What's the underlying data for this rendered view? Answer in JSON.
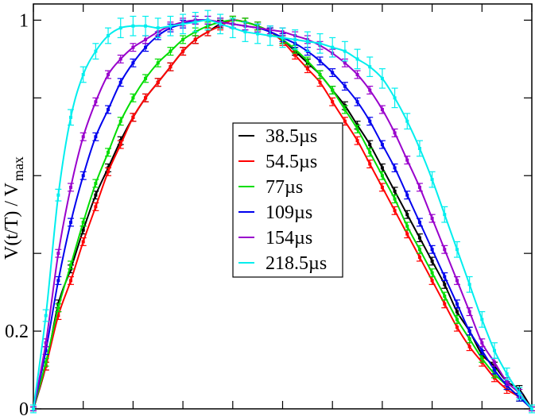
{
  "chart_data": {
    "type": "line",
    "title": "",
    "xlabel": "",
    "ylabel": "V(t/T) / V",
    "ylabel_sub": "max",
    "xlim": [
      0,
      1
    ],
    "ylim": [
      0,
      1
    ],
    "x_ticks": [
      0,
      0.1,
      0.2,
      0.3,
      0.4,
      0.5,
      0.6,
      0.7,
      0.8,
      0.9,
      1.0
    ],
    "y_ticks": [
      0,
      0.2,
      0.4,
      0.6,
      0.8,
      1.0
    ],
    "y_tick_labels": [
      "0",
      "0.2",
      "",
      "",
      "",
      "1"
    ],
    "grid": false,
    "legend_position": "center",
    "error_bars": true,
    "series": [
      {
        "name": "38.5µs",
        "color": "#000000",
        "x": [
          0.0,
          0.025,
          0.05,
          0.075,
          0.1,
          0.125,
          0.15,
          0.175,
          0.2,
          0.225,
          0.25,
          0.275,
          0.3,
          0.325,
          0.35,
          0.375,
          0.4,
          0.425,
          0.45,
          0.475,
          0.5,
          0.525,
          0.55,
          0.575,
          0.6,
          0.625,
          0.65,
          0.675,
          0.7,
          0.725,
          0.75,
          0.775,
          0.8,
          0.825,
          0.85,
          0.875,
          0.9,
          0.925,
          0.95,
          0.975,
          1.0
        ],
        "y": [
          0.0,
          0.11,
          0.27,
          0.36,
          0.46,
          0.55,
          0.62,
          0.69,
          0.75,
          0.8,
          0.84,
          0.88,
          0.92,
          0.95,
          0.97,
          0.99,
          1.0,
          0.995,
          0.985,
          0.97,
          0.95,
          0.92,
          0.89,
          0.86,
          0.82,
          0.78,
          0.73,
          0.68,
          0.62,
          0.56,
          0.5,
          0.44,
          0.38,
          0.32,
          0.25,
          0.2,
          0.14,
          0.11,
          0.07,
          0.05,
          0.0
        ],
        "err": [
          0.005,
          0.01,
          0.01,
          0.01,
          0.01,
          0.01,
          0.01,
          0.01,
          0.01,
          0.01,
          0.01,
          0.01,
          0.01,
          0.01,
          0.01,
          0.01,
          0.01,
          0.01,
          0.01,
          0.01,
          0.01,
          0.01,
          0.01,
          0.01,
          0.01,
          0.01,
          0.01,
          0.01,
          0.01,
          0.01,
          0.01,
          0.01,
          0.01,
          0.01,
          0.01,
          0.01,
          0.01,
          0.01,
          0.01,
          0.01,
          0.005
        ]
      },
      {
        "name": "54.5µs",
        "color": "#ff0000",
        "x": [
          0.0,
          0.025,
          0.05,
          0.075,
          0.1,
          0.125,
          0.15,
          0.175,
          0.2,
          0.225,
          0.25,
          0.275,
          0.3,
          0.325,
          0.35,
          0.375,
          0.4,
          0.425,
          0.45,
          0.475,
          0.5,
          0.525,
          0.55,
          0.575,
          0.6,
          0.625,
          0.65,
          0.675,
          0.7,
          0.725,
          0.75,
          0.775,
          0.8,
          0.825,
          0.85,
          0.875,
          0.9,
          0.925,
          0.95,
          0.975,
          1.0
        ],
        "y": [
          0.0,
          0.11,
          0.24,
          0.33,
          0.43,
          0.52,
          0.61,
          0.68,
          0.75,
          0.8,
          0.84,
          0.88,
          0.92,
          0.95,
          0.97,
          0.985,
          1.0,
          0.995,
          0.985,
          0.97,
          0.945,
          0.91,
          0.875,
          0.84,
          0.79,
          0.74,
          0.69,
          0.63,
          0.57,
          0.51,
          0.45,
          0.39,
          0.33,
          0.27,
          0.21,
          0.16,
          0.12,
          0.08,
          0.05,
          0.03,
          0.0
        ],
        "err": [
          0.005,
          0.01,
          0.01,
          0.01,
          0.01,
          0.01,
          0.01,
          0.01,
          0.01,
          0.01,
          0.01,
          0.01,
          0.01,
          0.01,
          0.01,
          0.01,
          0.01,
          0.01,
          0.01,
          0.01,
          0.01,
          0.01,
          0.01,
          0.01,
          0.01,
          0.01,
          0.01,
          0.01,
          0.01,
          0.01,
          0.01,
          0.01,
          0.01,
          0.01,
          0.01,
          0.01,
          0.01,
          0.01,
          0.01,
          0.01,
          0.005
        ]
      },
      {
        "name": "77µs",
        "color": "#00dd00",
        "x": [
          0.0,
          0.025,
          0.05,
          0.075,
          0.1,
          0.125,
          0.15,
          0.175,
          0.2,
          0.225,
          0.25,
          0.275,
          0.3,
          0.325,
          0.35,
          0.375,
          0.4,
          0.425,
          0.45,
          0.475,
          0.5,
          0.525,
          0.55,
          0.575,
          0.6,
          0.625,
          0.65,
          0.675,
          0.7,
          0.725,
          0.75,
          0.775,
          0.8,
          0.825,
          0.85,
          0.875,
          0.9,
          0.925,
          0.95,
          0.975,
          1.0
        ],
        "y": [
          0.0,
          0.12,
          0.26,
          0.37,
          0.48,
          0.58,
          0.66,
          0.74,
          0.8,
          0.85,
          0.89,
          0.92,
          0.95,
          0.97,
          0.985,
          0.995,
          1.0,
          0.995,
          0.985,
          0.97,
          0.95,
          0.925,
          0.895,
          0.86,
          0.82,
          0.77,
          0.72,
          0.66,
          0.6,
          0.54,
          0.47,
          0.41,
          0.35,
          0.29,
          0.23,
          0.18,
          0.13,
          0.09,
          0.06,
          0.03,
          0.0
        ],
        "err": [
          0.005,
          0.01,
          0.01,
          0.01,
          0.01,
          0.01,
          0.01,
          0.01,
          0.01,
          0.01,
          0.01,
          0.01,
          0.01,
          0.01,
          0.01,
          0.01,
          0.01,
          0.01,
          0.01,
          0.01,
          0.01,
          0.01,
          0.01,
          0.01,
          0.01,
          0.01,
          0.01,
          0.01,
          0.01,
          0.01,
          0.01,
          0.01,
          0.01,
          0.01,
          0.01,
          0.01,
          0.01,
          0.01,
          0.01,
          0.01,
          0.005
        ]
      },
      {
        "name": "109µs",
        "color": "#0000ee",
        "x": [
          0.0,
          0.025,
          0.05,
          0.075,
          0.1,
          0.125,
          0.15,
          0.175,
          0.2,
          0.225,
          0.25,
          0.275,
          0.3,
          0.325,
          0.35,
          0.375,
          0.4,
          0.425,
          0.45,
          0.475,
          0.5,
          0.525,
          0.55,
          0.575,
          0.6,
          0.625,
          0.65,
          0.675,
          0.7,
          0.725,
          0.75,
          0.775,
          0.8,
          0.825,
          0.85,
          0.875,
          0.9,
          0.925,
          0.95,
          0.975,
          1.0
        ],
        "y": [
          0.0,
          0.15,
          0.33,
          0.48,
          0.6,
          0.7,
          0.77,
          0.84,
          0.89,
          0.93,
          0.96,
          0.98,
          0.99,
          1.0,
          1.0,
          0.995,
          0.99,
          0.985,
          0.98,
          0.97,
          0.955,
          0.94,
          0.92,
          0.895,
          0.865,
          0.83,
          0.79,
          0.74,
          0.68,
          0.62,
          0.55,
          0.48,
          0.41,
          0.34,
          0.27,
          0.2,
          0.15,
          0.1,
          0.06,
          0.03,
          0.0
        ],
        "err": [
          0.005,
          0.01,
          0.01,
          0.01,
          0.01,
          0.01,
          0.01,
          0.01,
          0.01,
          0.01,
          0.01,
          0.01,
          0.01,
          0.01,
          0.01,
          0.01,
          0.01,
          0.01,
          0.01,
          0.01,
          0.01,
          0.01,
          0.01,
          0.01,
          0.01,
          0.01,
          0.01,
          0.01,
          0.01,
          0.01,
          0.01,
          0.01,
          0.01,
          0.01,
          0.01,
          0.01,
          0.01,
          0.01,
          0.01,
          0.01,
          0.005
        ]
      },
      {
        "name": "154µs",
        "color": "#9900cc",
        "x": [
          0.0,
          0.025,
          0.05,
          0.075,
          0.1,
          0.125,
          0.15,
          0.175,
          0.2,
          0.225,
          0.25,
          0.275,
          0.3,
          0.325,
          0.35,
          0.375,
          0.4,
          0.425,
          0.45,
          0.475,
          0.5,
          0.525,
          0.55,
          0.575,
          0.6,
          0.625,
          0.65,
          0.675,
          0.7,
          0.725,
          0.75,
          0.775,
          0.8,
          0.825,
          0.85,
          0.875,
          0.9,
          0.925,
          0.95,
          0.975,
          1.0
        ],
        "y": [
          0.0,
          0.17,
          0.4,
          0.57,
          0.7,
          0.79,
          0.86,
          0.9,
          0.93,
          0.95,
          0.97,
          0.985,
          0.995,
          1.0,
          1.0,
          0.995,
          0.99,
          0.985,
          0.98,
          0.975,
          0.97,
          0.96,
          0.95,
          0.935,
          0.915,
          0.89,
          0.86,
          0.82,
          0.77,
          0.71,
          0.64,
          0.57,
          0.49,
          0.41,
          0.33,
          0.25,
          0.17,
          0.12,
          0.07,
          0.04,
          0.0
        ],
        "err": [
          0.005,
          0.01,
          0.01,
          0.01,
          0.01,
          0.01,
          0.01,
          0.01,
          0.01,
          0.01,
          0.01,
          0.01,
          0.01,
          0.01,
          0.01,
          0.01,
          0.01,
          0.01,
          0.01,
          0.01,
          0.01,
          0.01,
          0.01,
          0.01,
          0.01,
          0.01,
          0.01,
          0.01,
          0.01,
          0.01,
          0.01,
          0.01,
          0.01,
          0.01,
          0.01,
          0.01,
          0.01,
          0.01,
          0.01,
          0.01,
          0.005
        ]
      },
      {
        "name": "218.5µs",
        "color": "#00eeee",
        "x": [
          0.0,
          0.025,
          0.05,
          0.075,
          0.1,
          0.125,
          0.15,
          0.175,
          0.2,
          0.225,
          0.25,
          0.275,
          0.3,
          0.325,
          0.35,
          0.375,
          0.4,
          0.425,
          0.45,
          0.475,
          0.5,
          0.525,
          0.55,
          0.575,
          0.6,
          0.625,
          0.65,
          0.675,
          0.7,
          0.725,
          0.75,
          0.775,
          0.8,
          0.825,
          0.85,
          0.875,
          0.9,
          0.925,
          0.95,
          0.975,
          1.0
        ],
        "y": [
          0.0,
          0.24,
          0.55,
          0.75,
          0.86,
          0.92,
          0.96,
          0.98,
          0.985,
          0.985,
          0.98,
          0.985,
          0.99,
          0.995,
          1.0,
          0.99,
          0.98,
          0.97,
          0.965,
          0.96,
          0.955,
          0.95,
          0.945,
          0.94,
          0.93,
          0.92,
          0.9,
          0.88,
          0.85,
          0.8,
          0.74,
          0.67,
          0.59,
          0.5,
          0.41,
          0.32,
          0.23,
          0.15,
          0.09,
          0.04,
          0.0
        ],
        "err": [
          0.01,
          0.015,
          0.015,
          0.02,
          0.02,
          0.02,
          0.02,
          0.025,
          0.025,
          0.025,
          0.025,
          0.025,
          0.025,
          0.025,
          0.025,
          0.025,
          0.025,
          0.025,
          0.025,
          0.025,
          0.025,
          0.025,
          0.025,
          0.025,
          0.025,
          0.025,
          0.025,
          0.025,
          0.025,
          0.025,
          0.02,
          0.02,
          0.02,
          0.02,
          0.02,
          0.02,
          0.02,
          0.02,
          0.015,
          0.015,
          0.01
        ]
      }
    ]
  }
}
